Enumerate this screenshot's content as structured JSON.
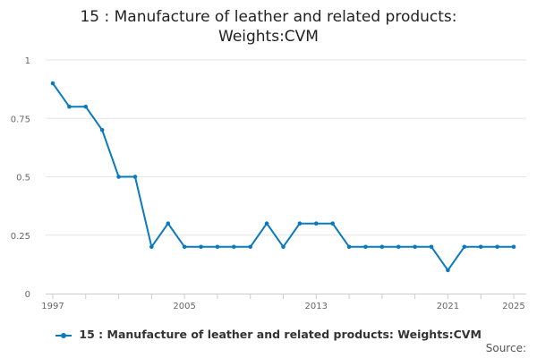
{
  "chart_data": {
    "type": "line",
    "title_lines": [
      "15 : Manufacture of leather and related products:",
      "Weights:CVM"
    ],
    "xlabel": "",
    "ylabel": "",
    "x": [
      1997,
      1998,
      1999,
      2000,
      2001,
      2002,
      2003,
      2004,
      2005,
      2006,
      2007,
      2008,
      2009,
      2010,
      2011,
      2012,
      2013,
      2014,
      2015,
      2016,
      2017,
      2018,
      2019,
      2020,
      2021,
      2022,
      2023,
      2024,
      2025
    ],
    "series": [
      {
        "name": "15 : Manufacture of leather and related products: Weights:CVM",
        "values": [
          0.9,
          0.8,
          0.8,
          0.7,
          0.5,
          0.5,
          0.2,
          0.3,
          0.2,
          0.2,
          0.2,
          0.2,
          0.2,
          0.3,
          0.2,
          0.3,
          0.3,
          0.3,
          0.2,
          0.2,
          0.2,
          0.2,
          0.2,
          0.2,
          0.1,
          0.2,
          0.2,
          0.2,
          0.2
        ],
        "color": "#0a7abf"
      }
    ],
    "xlim": [
      1997,
      2025
    ],
    "ylim": [
      0,
      1
    ],
    "x_tick_labels": [
      "1997",
      "2005",
      "2013",
      "2021",
      "2025"
    ],
    "y_tick_labels": [
      "0",
      "0.25",
      "0.5",
      "0.75",
      "1"
    ],
    "grid": true,
    "legend_position": "bottom-center",
    "source_label": "Source:"
  }
}
